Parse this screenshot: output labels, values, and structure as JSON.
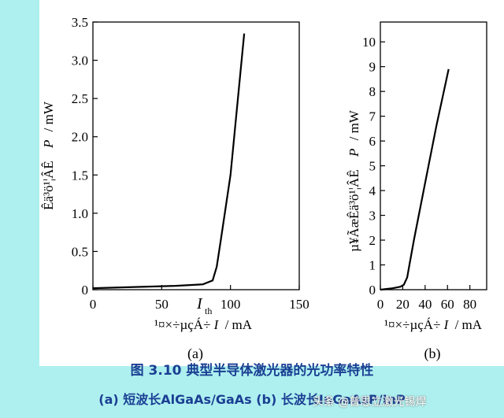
{
  "chart_data": [
    {
      "type": "line",
      "panel_label": "(a)",
      "y_axis_label_garbled": "Êä³ö¹¦ÂÊ",
      "y_axis_label_symbol": "P",
      "y_axis_label_unit": "/ mW",
      "x_axis_label_garbled": "¹¤×÷µçÁ÷",
      "x_axis_label_symbol": "I",
      "x_axis_label_unit": "/ mA",
      "threshold_label": "I",
      "threshold_subscript": "th",
      "x_ticks": [
        "0",
        "50",
        "100",
        "150"
      ],
      "y_ticks": [
        "0",
        "0.5",
        "1.0",
        "1.5",
        "2.0",
        "2.5",
        "3.0",
        "3.5"
      ],
      "xlim": [
        0,
        150
      ],
      "ylim": [
        0,
        3.5
      ],
      "series": [
        {
          "x": [
            0,
            20,
            40,
            60,
            80,
            87,
            90,
            93,
            100,
            110
          ],
          "y": [
            0.02,
            0.03,
            0.04,
            0.05,
            0.07,
            0.12,
            0.3,
            0.65,
            1.5,
            3.35
          ]
        }
      ]
    },
    {
      "type": "line",
      "panel_label": "(b)",
      "y_axis_label_garbled": "µ¥ÃæÊä³ö¹¦ÂÊ",
      "y_axis_label_symbol": "P",
      "y_axis_label_unit": "/ mW",
      "x_axis_label_garbled": "¹¤×÷µçÁ÷",
      "x_axis_label_symbol": "I",
      "x_axis_label_unit": "/ mA",
      "x_ticks": [
        "0",
        "20",
        "40",
        "60",
        "80"
      ],
      "y_ticks": [
        "0",
        "1",
        "2",
        "3",
        "4",
        "5",
        "6",
        "7",
        "8",
        "9",
        "10"
      ],
      "xlim": [
        0,
        95
      ],
      "ylim": [
        0,
        10.8
      ],
      "series": [
        {
          "x": [
            0,
            10,
            18,
            21,
            24,
            26,
            30,
            40,
            50,
            61
          ],
          "y": [
            0,
            0.05,
            0.12,
            0.2,
            0.5,
            1.0,
            2.0,
            4.3,
            6.6,
            8.9
          ]
        }
      ]
    }
  ],
  "caption": {
    "line1": "图 3.10   典型半导体激光器的光功率特性",
    "line2": "(a) 短波长AlGaAs/GaAs      (b) 长波长InGaAsP/InP"
  },
  "watermark": "头条 @普思立激光锡焊"
}
